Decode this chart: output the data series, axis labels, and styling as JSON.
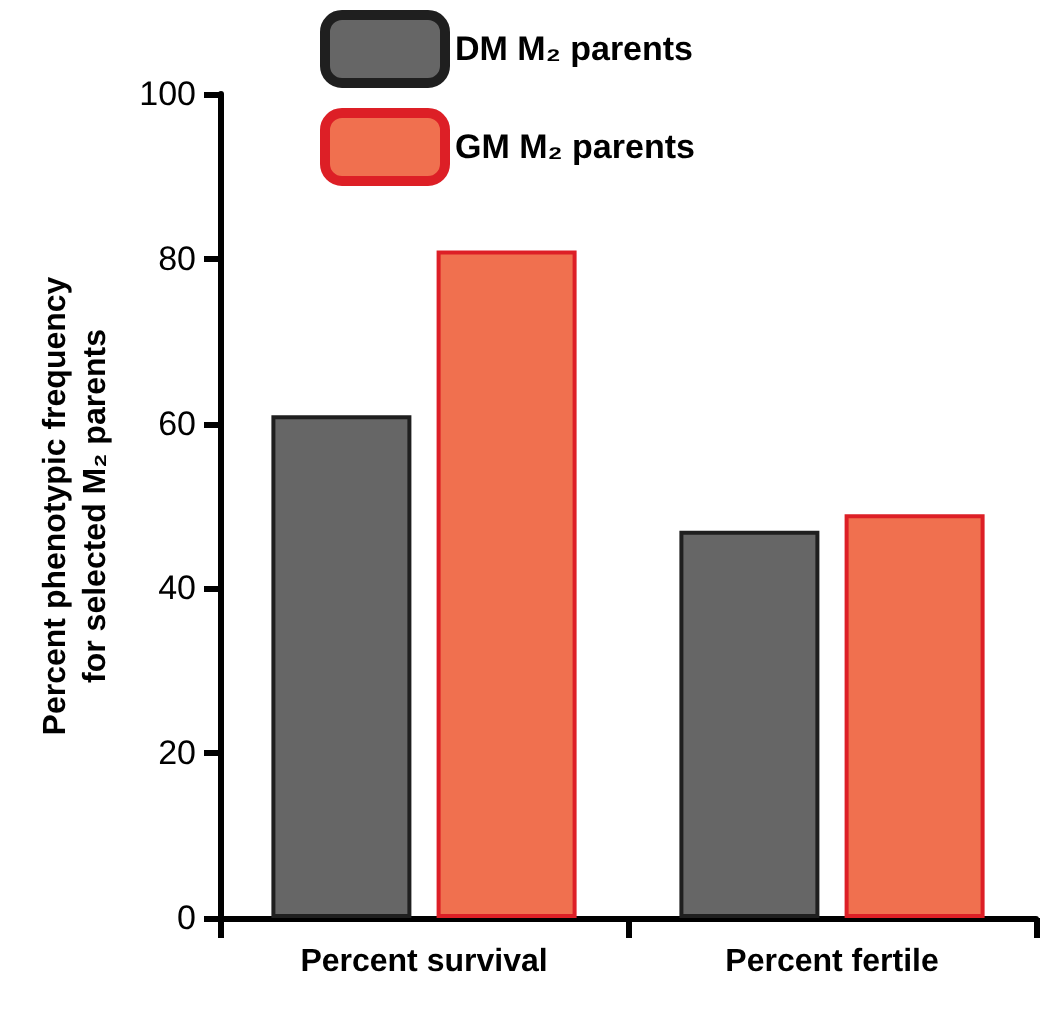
{
  "chart_data": {
    "type": "bar",
    "ylabel": "Percent phenotypic frequency\nfor selected M₂ parents",
    "categories": [
      "Percent survival",
      "Percent fertile"
    ],
    "series": [
      {
        "name": "DM M₂ parents",
        "color": "#666666",
        "values": [
          61,
          47
        ]
      },
      {
        "name": "GM M₂ parents",
        "color": "#f0704f",
        "values": [
          81,
          49
        ]
      }
    ],
    "ylim": [
      0,
      100
    ],
    "yticks": [
      0,
      20,
      40,
      60,
      80,
      100
    ],
    "grid": false,
    "legend": "top left"
  }
}
